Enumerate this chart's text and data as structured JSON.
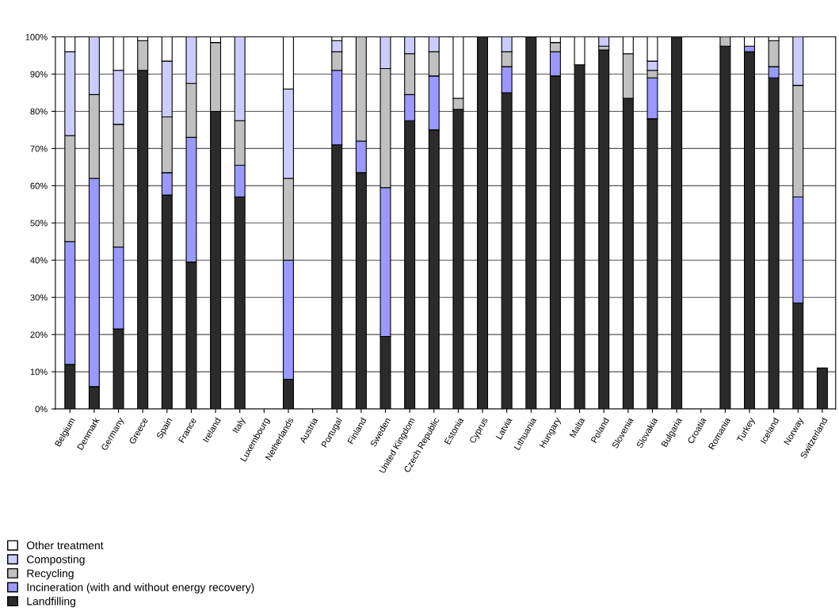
{
  "chart_data": {
    "type": "bar",
    "stacked": true,
    "categories": [
      "Belgium",
      "Denmark",
      "Germany",
      "Greece",
      "Spain",
      "France",
      "Ireland",
      "Italy",
      "Luxembourg",
      "Netherlands",
      "Austria",
      "Portugal",
      "Finland",
      "Sweden",
      "United Kingdom",
      "Czech Republic",
      "Estonia",
      "Cyprus",
      "Latvia",
      "Lithuania",
      "Hungary",
      "Malta",
      "Poland",
      "Slovenia",
      "Slovakia",
      "Bulgaria",
      "Croatia",
      "Romania",
      "Turkey",
      "Iceland",
      "Norway",
      "Switzerland"
    ],
    "series": [
      {
        "name": "Landfilling",
        "color": "#2b2b2b",
        "values": [
          12,
          6,
          21.5,
          91,
          57.5,
          39.5,
          80,
          57,
          null,
          8,
          null,
          71,
          63.5,
          19.5,
          77.5,
          75,
          80.5,
          100,
          85,
          100,
          89.5,
          92.5,
          96.5,
          83.5,
          78,
          100,
          null,
          97.5,
          96,
          89,
          28.5,
          11
        ]
      },
      {
        "name": "Incineration (with and without energy recovery)",
        "color": "#9999ff",
        "values": [
          33,
          56,
          22,
          0,
          6,
          33.5,
          0,
          8.5,
          null,
          32,
          null,
          20,
          8.5,
          40,
          7,
          14.5,
          0,
          0,
          7,
          0,
          6.5,
          0,
          0,
          0,
          11,
          0,
          null,
          0,
          1.5,
          3,
          28.5,
          null
        ]
      },
      {
        "name": "Recycling",
        "color": "#c0c0c0",
        "values": [
          28.5,
          22.5,
          33,
          8,
          15,
          14.5,
          18.5,
          12,
          null,
          22,
          null,
          5,
          28,
          32,
          11,
          6.5,
          3,
          0,
          4,
          0,
          2.5,
          0,
          1,
          12,
          2,
          0,
          null,
          2.5,
          0,
          7,
          30,
          null
        ]
      },
      {
        "name": "Composting",
        "color": "#ccccff",
        "values": [
          22.5,
          15.5,
          14.5,
          0,
          15,
          12.5,
          0,
          22.5,
          null,
          24,
          null,
          3,
          0,
          8.5,
          4.5,
          4,
          0,
          0,
          4,
          0,
          0,
          0,
          2.5,
          0,
          2.5,
          0,
          null,
          0,
          0,
          0,
          13,
          null
        ]
      },
      {
        "name": "Other treatment",
        "color": "#ffffff",
        "values": [
          4,
          0,
          9,
          1,
          6.5,
          0,
          1.5,
          0,
          null,
          14,
          null,
          1,
          0,
          0,
          0,
          0,
          16.5,
          0,
          0,
          0,
          1.5,
          7.5,
          0,
          4.5,
          6.5,
          0,
          null,
          0,
          2.5,
          1,
          0,
          null
        ]
      }
    ],
    "ylim": [
      0,
      100
    ],
    "yticks": [
      {
        "value": 0,
        "label": "0%"
      },
      {
        "value": 10,
        "label": "10%"
      },
      {
        "value": 20,
        "label": "20%"
      },
      {
        "value": 30,
        "label": "30%"
      },
      {
        "value": 40,
        "label": "40%"
      },
      {
        "value": 50,
        "label": "50%"
      },
      {
        "value": 60,
        "label": "60%"
      },
      {
        "value": 70,
        "label": "70%"
      },
      {
        "value": 80,
        "label": "80%"
      },
      {
        "value": 90,
        "label": "90%"
      },
      {
        "value": 100,
        "label": "100%"
      }
    ],
    "grid": "y",
    "legend": "bottom left"
  }
}
